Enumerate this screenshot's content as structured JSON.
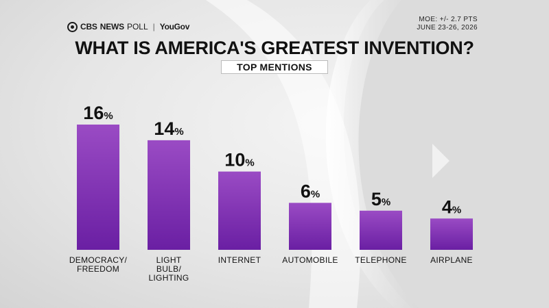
{
  "header": {
    "brand_cbs": "CBS",
    "brand_news": "NEWS",
    "brand_poll": "POLL",
    "brand_separator": "|",
    "brand_partner": "YouGov",
    "moe": "MOE: +/- 2.7 PTS",
    "dates": "JUNE 23-26, 2026",
    "title": "WHAT IS AMERICA'S GREATEST INVENTION?",
    "subtitle": "TOP MENTIONS"
  },
  "colors": {
    "bar_top": "#9a4bc4",
    "bar_bottom": "#6a1fa3",
    "text": "#111111"
  },
  "icons": {
    "brand": "cbs-eye-icon"
  },
  "chart_data": {
    "type": "bar",
    "categories": [
      [
        "DEMOCRACY/",
        "FREEDOM"
      ],
      [
        "LIGHT",
        "BULB/",
        "LIGHTING"
      ],
      [
        "INTERNET"
      ],
      [
        "AUTOMOBILE"
      ],
      [
        "TELEPHONE"
      ],
      [
        "AIRPLANE"
      ]
    ],
    "values": [
      16,
      14,
      10,
      6,
      5,
      4
    ],
    "unit": "%",
    "title": "WHAT IS AMERICA'S GREATEST INVENTION?",
    "subtitle": "TOP MENTIONS",
    "ylim": [
      0,
      16
    ],
    "grid": false,
    "legend": "none"
  }
}
